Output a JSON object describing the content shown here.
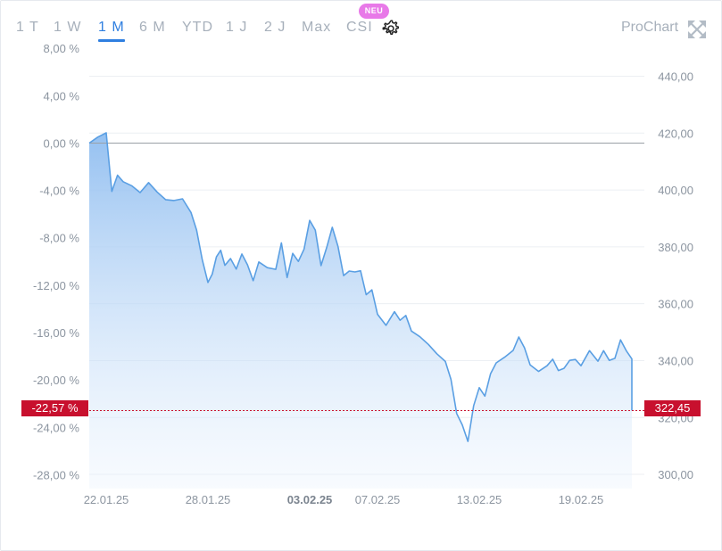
{
  "tabs": [
    {
      "label": "1 T",
      "active": false
    },
    {
      "label": "1 W",
      "active": false
    },
    {
      "label": "1 M",
      "active": true
    },
    {
      "label": "6 M",
      "active": false
    },
    {
      "label": "YTD",
      "active": false
    },
    {
      "label": "1 J",
      "active": false
    },
    {
      "label": "2 J",
      "active": false
    },
    {
      "label": "Max",
      "active": false
    },
    {
      "label": "CSI",
      "active": false
    }
  ],
  "new_badge": "NEU",
  "settings_icon": "gear-icon",
  "prochart_label": "ProChart",
  "expand_icon": "expand-arrows-icon",
  "colors": {
    "line": "#5a9fe3",
    "area_top": "#8fbdf0",
    "accent": "#2f7fe0",
    "marker": "#c8102e",
    "badge": "#e879e8"
  },
  "chart_data": {
    "type": "area",
    "title": "",
    "xlabel": "",
    "ylabel": "",
    "left_axis": {
      "unit": "%",
      "ticks": [
        "8,00 %",
        "4,00 %",
        "0,00 %",
        "-4,00 %",
        "-8,00 %",
        "-12,00 %",
        "-16,00 %",
        "-20,00 %",
        "-24,00 %",
        "-28,00 %"
      ]
    },
    "right_axis": {
      "ticks": [
        "440,00",
        "420,00",
        "400,00",
        "380,00",
        "360,00",
        "340,00",
        "320,00",
        "300,00"
      ],
      "ylim": [
        295,
        448
      ]
    },
    "x_ticks": [
      {
        "label": "22.01.25",
        "bold": false
      },
      {
        "label": "28.01.25",
        "bold": false
      },
      {
        "label": "03.02.25",
        "bold": true
      },
      {
        "label": "07.02.25",
        "bold": false
      },
      {
        "label": "13.02.25",
        "bold": false
      },
      {
        "label": "19.02.25",
        "bold": false
      }
    ],
    "start_date": "2025-01-21",
    "end_date": "2025-02-22",
    "base_price": 416.5,
    "last_value_percent_label": "-22,57 %",
    "last_value_price_label": "322,45",
    "last_price": 322.45,
    "grid": true,
    "series": [
      {
        "x": [
          "2025-01-21",
          "2025-01-21",
          "2025-01-22",
          "2025-01-22",
          "2025-01-22",
          "2025-01-23",
          "2025-01-23",
          "2025-01-24",
          "2025-01-24",
          "2025-01-25",
          "2025-01-25",
          "2025-01-26",
          "2025-01-26",
          "2025-01-27",
          "2025-01-27",
          "2025-01-27",
          "2025-01-28",
          "2025-01-28",
          "2025-01-28",
          "2025-01-28",
          "2025-01-29",
          "2025-01-29",
          "2025-01-29",
          "2025-01-30",
          "2025-01-30",
          "2025-01-30",
          "2025-01-31",
          "2025-01-31",
          "2025-02-01",
          "2025-02-01",
          "2025-02-01",
          "2025-02-02",
          "2025-02-02",
          "2025-02-02",
          "2025-02-03",
          "2025-02-03",
          "2025-02-03",
          "2025-02-04",
          "2025-02-04",
          "2025-02-04",
          "2025-02-05",
          "2025-02-05",
          "2025-02-05",
          "2025-02-06",
          "2025-02-06",
          "2025-02-06",
          "2025-02-07",
          "2025-02-07",
          "2025-02-08",
          "2025-02-08",
          "2025-02-08",
          "2025-02-09",
          "2025-02-09",
          "2025-02-10",
          "2025-02-10",
          "2025-02-11",
          "2025-02-11",
          "2025-02-11",
          "2025-02-12",
          "2025-02-12",
          "2025-02-12",
          "2025-02-13",
          "2025-02-13",
          "2025-02-13",
          "2025-02-14",
          "2025-02-14",
          "2025-02-15",
          "2025-02-15",
          "2025-02-15",
          "2025-02-16",
          "2025-02-16",
          "2025-02-17",
          "2025-02-17",
          "2025-02-17",
          "2025-02-18",
          "2025-02-18",
          "2025-02-18",
          "2025-02-19",
          "2025-02-19",
          "2025-02-20",
          "2025-02-20",
          "2025-02-20",
          "2025-02-21",
          "2025-02-21",
          "2025-02-21",
          "2025-02-22",
          "2025-02-22",
          "2025-02-22"
        ],
        "values": [
          416.5,
          418.6,
          420.1,
          399.5,
          405.2,
          402.9,
          401.5,
          399.1,
          402.6,
          399.3,
          396.6,
          396.3,
          396.9,
          392.1,
          385.9,
          375.4,
          367.5,
          370.4,
          376.5,
          378.8,
          373.5,
          375.9,
          372.2,
          377.5,
          373.7,
          368.1,
          374.7,
          372.7,
          372.1,
          381.4,
          369.2,
          377.7,
          374.9,
          379.2,
          389.3,
          385.9,
          373.4,
          379.7,
          386.9,
          380.2,
          369.9,
          371.5,
          371.2,
          371.6,
          363.2,
          364.9,
          356.3,
          352.4,
          357.2,
          354.2,
          355.9,
          350.4,
          348.4,
          345.7,
          342.4,
          339.7,
          333.4,
          321.4,
          317.4,
          311.6,
          324.1,
          330.5,
          327.5,
          335.4,
          339.2,
          341.2,
          343.6,
          348.3,
          344.5,
          338.5,
          336.2,
          338.2,
          340.5,
          336.5,
          337.3,
          340.1,
          340.4,
          338.2,
          343.5,
          339.8,
          343.5,
          340.1,
          340.8,
          347.3,
          343.5,
          340.6,
          338.7,
          322.45
        ]
      }
    ]
  }
}
